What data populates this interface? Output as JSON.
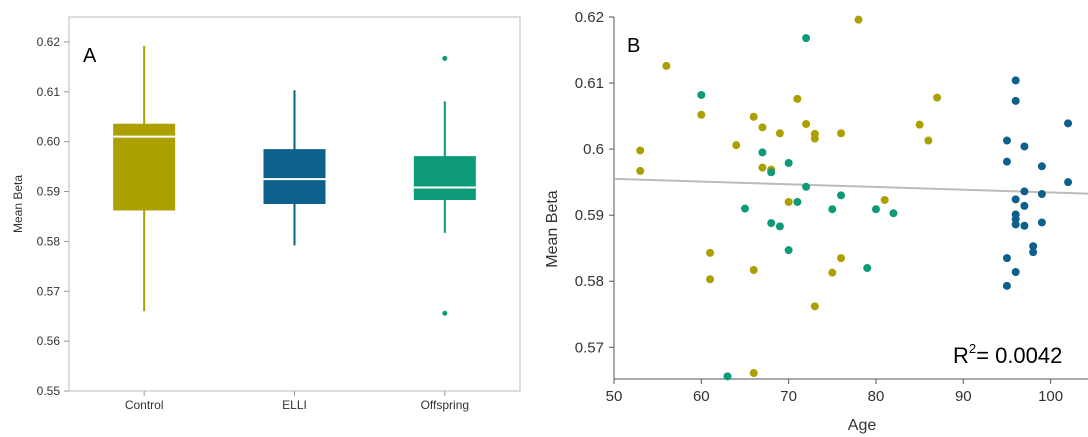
{
  "chart_data": [
    {
      "type": "box",
      "panel_label": "A",
      "xlabel": "",
      "ylabel": "Mean Beta",
      "ylim": [
        0.55,
        0.625
      ],
      "yticks": [
        "0.55",
        "0.56",
        "0.57",
        "0.58",
        "0.59",
        "0.60",
        "0.61",
        "0.62"
      ],
      "grid": false,
      "categories": [
        "Control",
        "ELLI",
        "Offspring"
      ],
      "boxes": [
        {
          "category": "Control",
          "color": "#ABA000",
          "whisker_low": 0.566,
          "q1": 0.5862,
          "median": 0.601,
          "q3": 0.6036,
          "whisker_high": 0.6192,
          "outliers": []
        },
        {
          "category": "ELLI",
          "color": "#0D5F8C",
          "whisker_low": 0.5792,
          "q1": 0.5875,
          "median": 0.5925,
          "q3": 0.5985,
          "whisker_high": 0.6103,
          "outliers": []
        },
        {
          "category": "Offspring",
          "color": "#0D9A78",
          "whisker_low": 0.5817,
          "q1": 0.5883,
          "median": 0.5908,
          "q3": 0.5971,
          "whisker_high": 0.6081,
          "outliers": [
            0.6167,
            0.5656
          ]
        }
      ]
    },
    {
      "type": "scatter",
      "panel_label": "B",
      "xlabel": "Age",
      "ylabel": "Mean Beta",
      "xlim": [
        50,
        106
      ],
      "ylim": [
        0.5652,
        0.62
      ],
      "xticks": [
        "50",
        "60",
        "70",
        "80",
        "90",
        "100"
      ],
      "yticks": [
        "0.57",
        "0.58",
        "0.59",
        "0.6",
        "0.61",
        "0.62"
      ],
      "grid": false,
      "annotation": {
        "prefix": "R",
        "superscript": "2",
        "suffix": "= 0.0042"
      },
      "regression": {
        "x": [
          50,
          106
        ],
        "y": [
          0.5955,
          0.5932
        ],
        "color": "#bbbbbb"
      },
      "series": [
        {
          "color": "#ABA000",
          "points": [
            [
              53,
              0.5998
            ],
            [
              53,
              0.5967
            ],
            [
              56,
              0.6126
            ],
            [
              60,
              0.6052
            ],
            [
              61,
              0.5843
            ],
            [
              61,
              0.5803
            ],
            [
              64,
              0.6006
            ],
            [
              66,
              0.6049
            ],
            [
              66,
              0.5817
            ],
            [
              66,
              0.5661
            ],
            [
              67,
              0.6033
            ],
            [
              67,
              0.5972
            ],
            [
              68,
              0.5969
            ],
            [
              69,
              0.6024
            ],
            [
              70,
              0.592
            ],
            [
              71,
              0.6076
            ],
            [
              72,
              0.6038
            ],
            [
              73,
              0.6023
            ],
            [
              73,
              0.6016
            ],
            [
              73,
              0.5762
            ],
            [
              75,
              0.5813
            ],
            [
              76,
              0.6024
            ],
            [
              76,
              0.5835
            ],
            [
              78,
              0.6196
            ],
            [
              81,
              0.5923
            ],
            [
              85,
              0.6037
            ],
            [
              86,
              0.6013
            ],
            [
              87,
              0.6078
            ]
          ]
        },
        {
          "color": "#0D9A78",
          "points": [
            [
              60,
              0.6082
            ],
            [
              63,
              0.5656
            ],
            [
              65,
              0.591
            ],
            [
              67,
              0.5995
            ],
            [
              68,
              0.5888
            ],
            [
              68,
              0.5965
            ],
            [
              69,
              0.5883
            ],
            [
              70,
              0.5979
            ],
            [
              70,
              0.5847
            ],
            [
              71,
              0.592
            ],
            [
              72,
              0.6168
            ],
            [
              72,
              0.5943
            ],
            [
              75,
              0.5909
            ],
            [
              76,
              0.593
            ],
            [
              79,
              0.582
            ],
            [
              80,
              0.5909
            ],
            [
              82,
              0.5903
            ]
          ]
        },
        {
          "color": "#0D5F8C",
          "points": [
            [
              95,
              0.6013
            ],
            [
              95,
              0.5981
            ],
            [
              95,
              0.5835
            ],
            [
              95,
              0.5793
            ],
            [
              96,
              0.6104
            ],
            [
              96,
              0.6073
            ],
            [
              96,
              0.5924
            ],
            [
              96,
              0.5901
            ],
            [
              96,
              0.5894
            ],
            [
              96,
              0.5886
            ],
            [
              96,
              0.5814
            ],
            [
              97,
              0.6004
            ],
            [
              97,
              0.5936
            ],
            [
              97,
              0.5914
            ],
            [
              97,
              0.5884
            ],
            [
              98,
              0.5853
            ],
            [
              98,
              0.5844
            ],
            [
              99,
              0.5974
            ],
            [
              99,
              0.5932
            ],
            [
              99,
              0.5889
            ],
            [
              102,
              0.6039
            ],
            [
              102,
              0.595
            ]
          ]
        }
      ]
    }
  ]
}
